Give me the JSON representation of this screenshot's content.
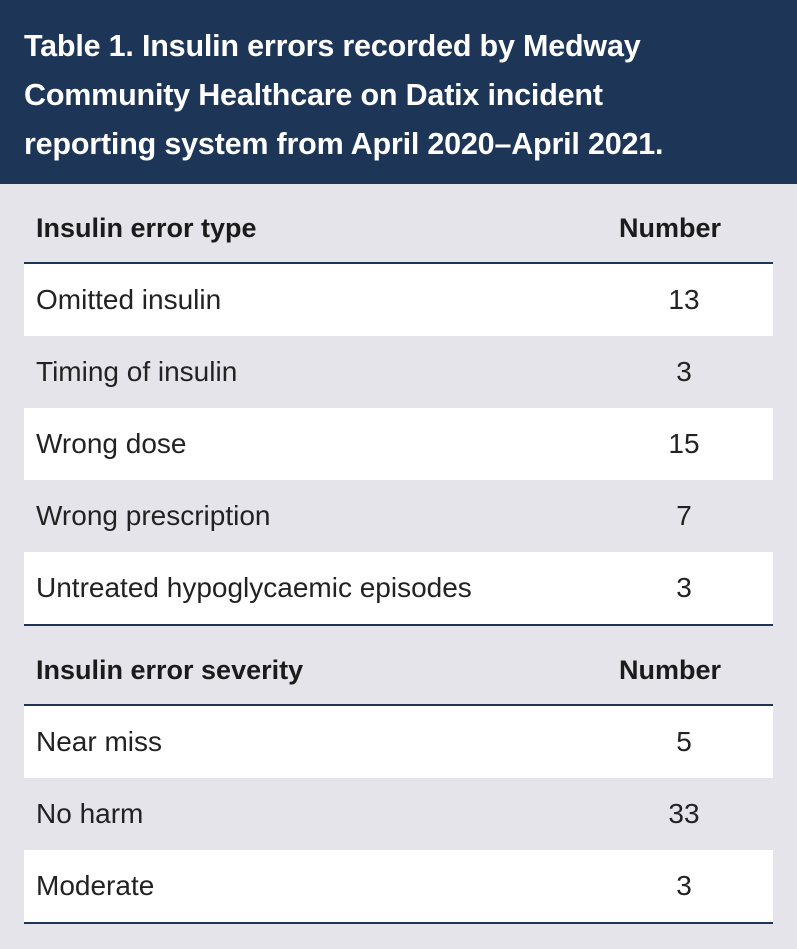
{
  "title": "Table 1. Insulin errors recorded by Medway\nCommunity Healthcare on Datix incident\nreporting system from April 2020–April 2021.",
  "sections": [
    {
      "header": {
        "label": "Insulin error type",
        "number": "Number"
      },
      "rows": [
        {
          "label": "Omitted insulin",
          "value": "13"
        },
        {
          "label": "Timing of insulin",
          "value": "3"
        },
        {
          "label": "Wrong dose",
          "value": "15"
        },
        {
          "label": "Wrong prescription",
          "value": "7"
        },
        {
          "label": "Untreated hypoglycaemic episodes",
          "value": "3"
        }
      ]
    },
    {
      "header": {
        "label": "Insulin error severity",
        "number": "Number"
      },
      "rows": [
        {
          "label": "Near miss",
          "value": "5"
        },
        {
          "label": "No harm",
          "value": "33"
        },
        {
          "label": "Moderate",
          "value": "3"
        }
      ]
    }
  ],
  "colors": {
    "title_background": "#1d3557",
    "page_background": "#e4e4ea",
    "row_white": "#ffffff",
    "rule": "#1d3557"
  }
}
